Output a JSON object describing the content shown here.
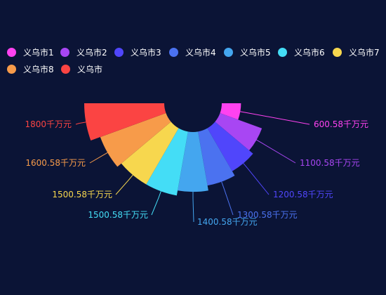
{
  "chart_data": {
    "type": "pie",
    "variant": "rose-half",
    "unit": "千万元",
    "slices": [
      {
        "name": "义乌市1",
        "value": 600.58,
        "label": "600.58千万元",
        "color": "#ff42f0"
      },
      {
        "name": "义乌市2",
        "value": 1100.58,
        "label": "1100.58千万元",
        "color": "#a846f3"
      },
      {
        "name": "义乌市3",
        "value": 1200.58,
        "label": "1200.58千万元",
        "color": "#5046fb"
      },
      {
        "name": "义乌市4",
        "value": 1300.58,
        "label": "1300.58千万元",
        "color": "#4b72f0"
      },
      {
        "name": "义乌市5",
        "value": 1400.58,
        "label": "1400.58千万元",
        "color": "#44a6ef"
      },
      {
        "name": "义乌市6",
        "value": 1500.58,
        "label": "1500.58千万元",
        "color": "#44ddf6"
      },
      {
        "name": "义乌市7",
        "value": 1500.58,
        "label": "1500.58千万元",
        "color": "#f7d74e"
      },
      {
        "name": "义乌市8",
        "value": 1600.58,
        "label": "1600.58千万元",
        "color": "#f79b4a"
      },
      {
        "name": "义乌市",
        "value": 1800,
        "label": "1800千万元",
        "color": "#fb4443"
      }
    ],
    "legend_position": "top-left"
  }
}
